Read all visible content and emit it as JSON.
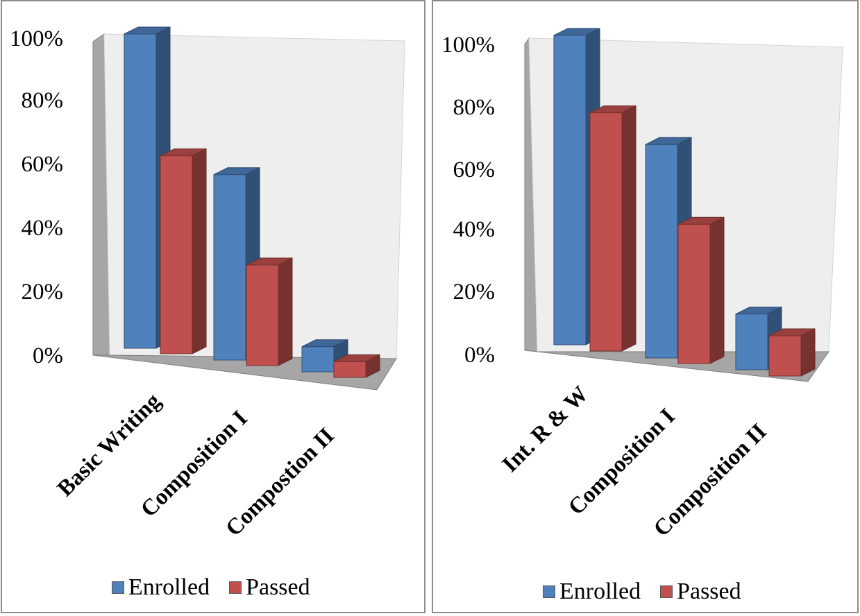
{
  "chart_data": [
    {
      "type": "bar",
      "subtype": "3d-clustered-column",
      "categories": [
        "Basic Writing",
        "Composition I",
        "Compostion II"
      ],
      "series": [
        {
          "name": "Enrolled",
          "color": "#4f81bd",
          "values": [
            100,
            59,
            8
          ]
        },
        {
          "name": "Passed",
          "color": "#c0504d",
          "values": [
            63,
            32,
            5
          ]
        }
      ],
      "y_ticks": [
        "0%",
        "20%",
        "40%",
        "60%",
        "80%",
        "100%"
      ],
      "ylim": [
        0,
        100
      ],
      "grid": false,
      "legend": {
        "position": "bottom",
        "entries": [
          "Enrolled",
          "Passed"
        ]
      }
    },
    {
      "type": "bar",
      "subtype": "3d-clustered-column",
      "categories": [
        "Int. R & W",
        "Composition I",
        "Composition II"
      ],
      "series": [
        {
          "name": "Enrolled",
          "color": "#4f81bd",
          "values": [
            100,
            69,
            18
          ]
        },
        {
          "name": "Passed",
          "color": "#c0504d",
          "values": [
            77,
            45,
            13
          ]
        }
      ],
      "y_ticks": [
        "0%",
        "20%",
        "40%",
        "60%",
        "80%",
        "100%"
      ],
      "ylim": [
        0,
        100
      ],
      "grid": false,
      "legend": {
        "position": "bottom",
        "entries": [
          "Enrolled",
          "Passed"
        ]
      }
    }
  ]
}
